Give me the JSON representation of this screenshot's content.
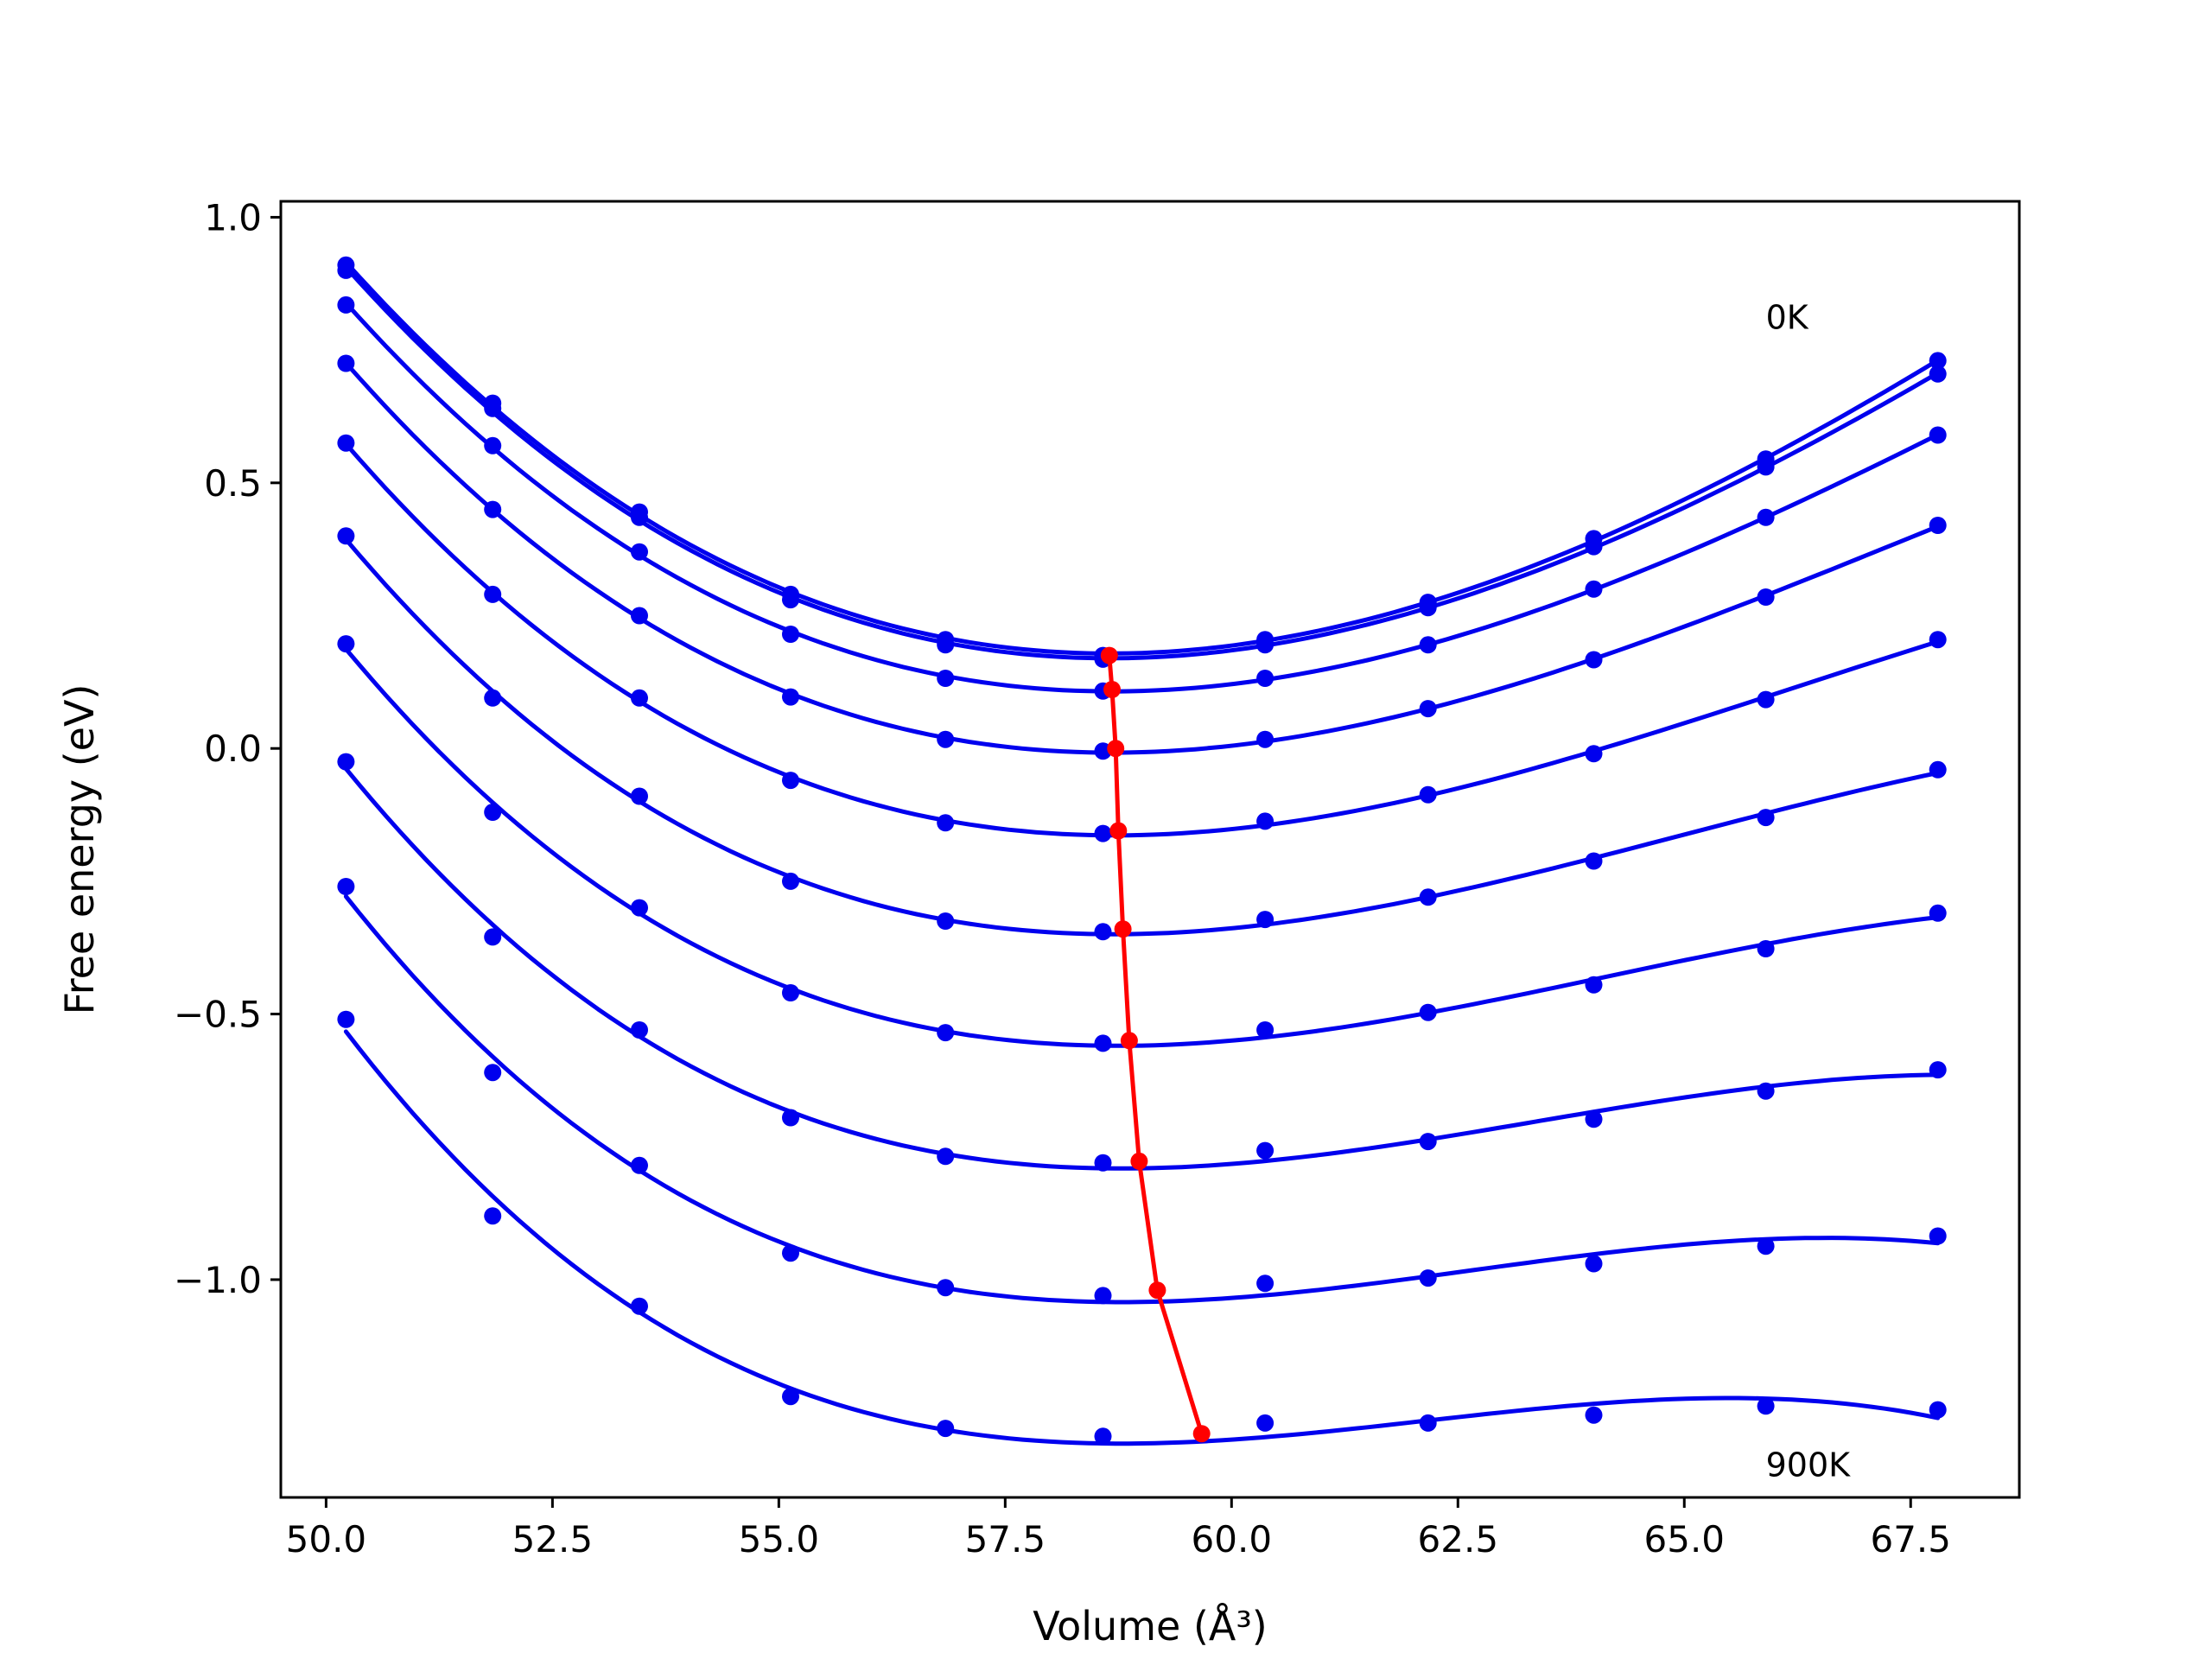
{
  "chart_data": {
    "type": "line",
    "xlabel": "Volume (Å³)",
    "ylabel": "Free energy (eV)",
    "xlim": [
      49.5,
      68.7
    ],
    "ylim": [
      -1.41,
      1.03
    ],
    "grid": false,
    "legend": "none",
    "x_ticks": [
      {
        "value": 50.0,
        "label": "50.0"
      },
      {
        "value": 52.5,
        "label": "52.5"
      },
      {
        "value": 55.0,
        "label": "55.0"
      },
      {
        "value": 57.5,
        "label": "57.5"
      },
      {
        "value": 60.0,
        "label": "60.0"
      },
      {
        "value": 62.5,
        "label": "62.5"
      },
      {
        "value": 65.0,
        "label": "65.0"
      },
      {
        "value": 67.5,
        "label": "67.5"
      }
    ],
    "y_ticks": [
      {
        "value": 1.0,
        "label": "1.0"
      },
      {
        "value": 0.5,
        "label": "0.5"
      },
      {
        "value": 0.0,
        "label": "0.0"
      },
      {
        "value": -0.5,
        "label": "−0.5"
      },
      {
        "value": -1.0,
        "label": "−1.0"
      }
    ],
    "annotations": [
      {
        "text": "0K",
        "x": 65.9,
        "y": 0.79
      },
      {
        "text": "900K",
        "x": 65.9,
        "y": -1.37
      }
    ],
    "colors": {
      "isotherm": "#0000ee",
      "minimum_path": "#ff0000",
      "frame": "#000000"
    },
    "volumes": [
      50.22,
      51.84,
      53.46,
      55.13,
      56.84,
      58.58,
      60.37,
      62.17,
      64.0,
      65.9,
      67.8
    ],
    "isotherms": [
      {
        "points": [
          0.91,
          0.65,
          0.445,
          0.29,
          0.205,
          0.175,
          0.205,
          0.275,
          0.395,
          0.545,
          0.73
        ]
      },
      {
        "points": [
          0.9,
          0.64,
          0.435,
          0.28,
          0.195,
          0.168,
          0.195,
          0.265,
          0.38,
          0.53,
          0.705
        ]
      },
      {
        "points": [
          0.835,
          0.57,
          0.37,
          0.215,
          0.132,
          0.108,
          0.132,
          0.195,
          0.3,
          0.435,
          0.59
        ]
      },
      {
        "points": [
          0.725,
          0.45,
          0.25,
          0.097,
          0.017,
          -0.005,
          0.017,
          0.075,
          0.167,
          0.285,
          0.42
        ]
      },
      {
        "points": [
          0.575,
          0.29,
          0.095,
          -0.06,
          -0.14,
          -0.16,
          -0.137,
          -0.087,
          -0.01,
          0.092,
          0.205
        ]
      },
      {
        "points": [
          0.4,
          0.095,
          -0.09,
          -0.25,
          -0.325,
          -0.345,
          -0.322,
          -0.28,
          -0.212,
          -0.13,
          -0.04
        ]
      },
      {
        "points": [
          0.197,
          -0.12,
          -0.3,
          -0.46,
          -0.535,
          -0.555,
          -0.53,
          -0.497,
          -0.445,
          -0.377,
          -0.31
        ]
      },
      {
        "points": [
          -0.025,
          -0.355,
          -0.53,
          -0.695,
          -0.768,
          -0.78,
          -0.757,
          -0.74,
          -0.698,
          -0.645,
          -0.605
        ]
      },
      {
        "points": [
          -0.26,
          -0.61,
          -0.785,
          -0.95,
          -1.015,
          -1.03,
          -1.007,
          -0.997,
          -0.97,
          -0.937,
          -0.918
        ]
      },
      {
        "points": [
          -0.51,
          -0.88,
          -1.05,
          -1.22,
          -1.28,
          -1.295,
          -1.27,
          -1.27,
          -1.255,
          -1.238,
          -1.245
        ]
      }
    ],
    "minimum_path": {
      "x": [
        58.65,
        58.68,
        58.72,
        58.75,
        58.8,
        58.87,
        58.98,
        59.18,
        59.67
      ],
      "y": [
        0.175,
        0.111,
        0.0,
        -0.155,
        -0.34,
        -0.55,
        -0.777,
        -1.02,
        -1.29
      ]
    }
  }
}
